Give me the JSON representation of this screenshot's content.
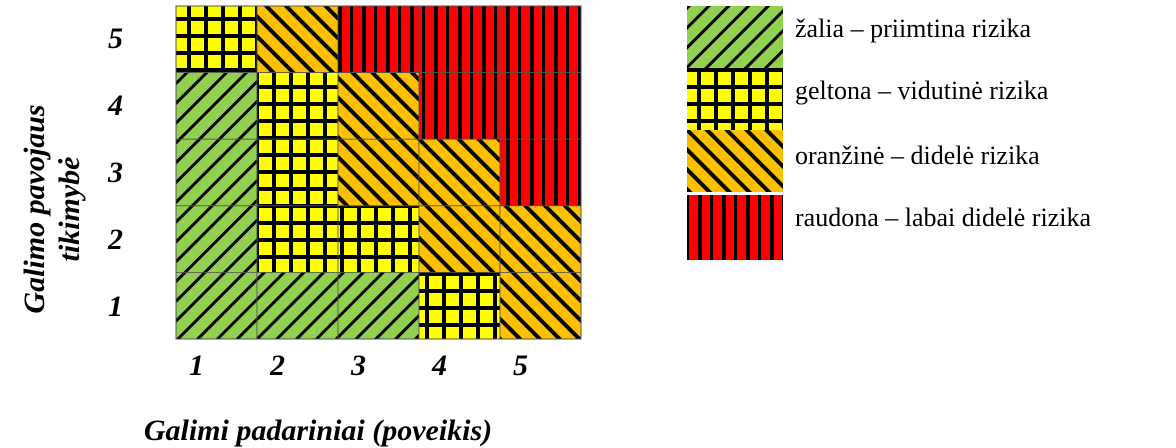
{
  "matrix": {
    "y_axis_title_line1": "Galimo pavojaus",
    "y_axis_title_line2": "tikimybė",
    "x_axis_title": "Galimi padariniai (poveikis)",
    "y_labels": [
      "5",
      "4",
      "3",
      "2",
      "1"
    ],
    "x_labels": [
      "1",
      "2",
      "3",
      "4",
      "5"
    ],
    "rows": [
      [
        "yellow",
        "orange",
        "red",
        "red",
        "red"
      ],
      [
        "green",
        "yellow",
        "orange",
        "red",
        "red"
      ],
      [
        "green",
        "yellow",
        "orange",
        "orange",
        "red"
      ],
      [
        "green",
        "yellow",
        "yellow",
        "orange",
        "orange"
      ],
      [
        "green",
        "green",
        "green",
        "yellow",
        "orange"
      ]
    ]
  },
  "legend": [
    {
      "key": "green",
      "label": "žalia – priimtina rizika"
    },
    {
      "key": "yellow",
      "label": "geltona – vidutinė rizika"
    },
    {
      "key": "orange",
      "label": "oranžinė – didelė  rizika"
    },
    {
      "key": "red",
      "label": "raudona – labai didelė rizika"
    }
  ],
  "colors": {
    "green": "#92d050",
    "yellow": "#ffff00",
    "orange": "#ffc000",
    "red": "#ff0000"
  }
}
